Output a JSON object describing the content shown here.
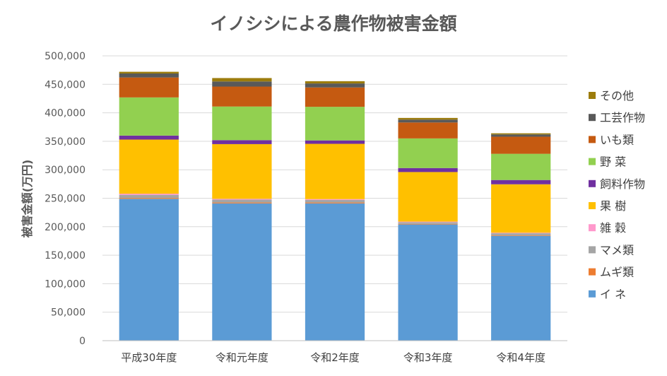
{
  "chart_data": {
    "type": "bar",
    "stacked": true,
    "title": "イノシシによる農作物被害金額",
    "ylabel": "被害金額(万円)",
    "xlabel": "",
    "ylim": [
      0,
      500000
    ],
    "yticks": [
      "0",
      "50,000",
      "100,000",
      "150,000",
      "200,000",
      "250,000",
      "300,000",
      "350,000",
      "400,000",
      "450,000",
      "500,000"
    ],
    "grid": true,
    "legend_position": "right",
    "categories": [
      "平成30年度",
      "令和元年度",
      "令和2年度",
      "令和3年度",
      "令和4年度"
    ],
    "series": [
      {
        "name": "イ ネ",
        "color": "#5b9bd5",
        "values": [
          249000,
          241000,
          241000,
          204000,
          184000
        ]
      },
      {
        "name": "ムギ類",
        "color": "#ed7d31",
        "values": [
          1500,
          1500,
          1500,
          1000,
          1000
        ]
      },
      {
        "name": "マメ類",
        "color": "#a5a5a5",
        "values": [
          5500,
          5000,
          4500,
          3000,
          3500
        ]
      },
      {
        "name": "雑 穀",
        "color": "#ff99cc",
        "values": [
          2000,
          1500,
          1500,
          1000,
          1000
        ]
      },
      {
        "name": "果 樹",
        "color": "#ffc000",
        "values": [
          95000,
          96000,
          97000,
          87000,
          85000
        ]
      },
      {
        "name": "飼料作物",
        "color": "#7030a0",
        "values": [
          7000,
          7000,
          6000,
          7000,
          7500
        ]
      },
      {
        "name": "野 菜",
        "color": "#92d050",
        "values": [
          67000,
          59000,
          59000,
          52000,
          46000
        ]
      },
      {
        "name": "いも類",
        "color": "#c55a11",
        "values": [
          35000,
          35000,
          34000,
          28000,
          30000
        ]
      },
      {
        "name": "工芸作物",
        "color": "#595959",
        "values": [
          7000,
          9000,
          7000,
          5000,
          4000
        ]
      },
      {
        "name": "その他",
        "color": "#9c7c0c",
        "values": [
          3000,
          6000,
          4000,
          3000,
          2000
        ]
      }
    ]
  }
}
